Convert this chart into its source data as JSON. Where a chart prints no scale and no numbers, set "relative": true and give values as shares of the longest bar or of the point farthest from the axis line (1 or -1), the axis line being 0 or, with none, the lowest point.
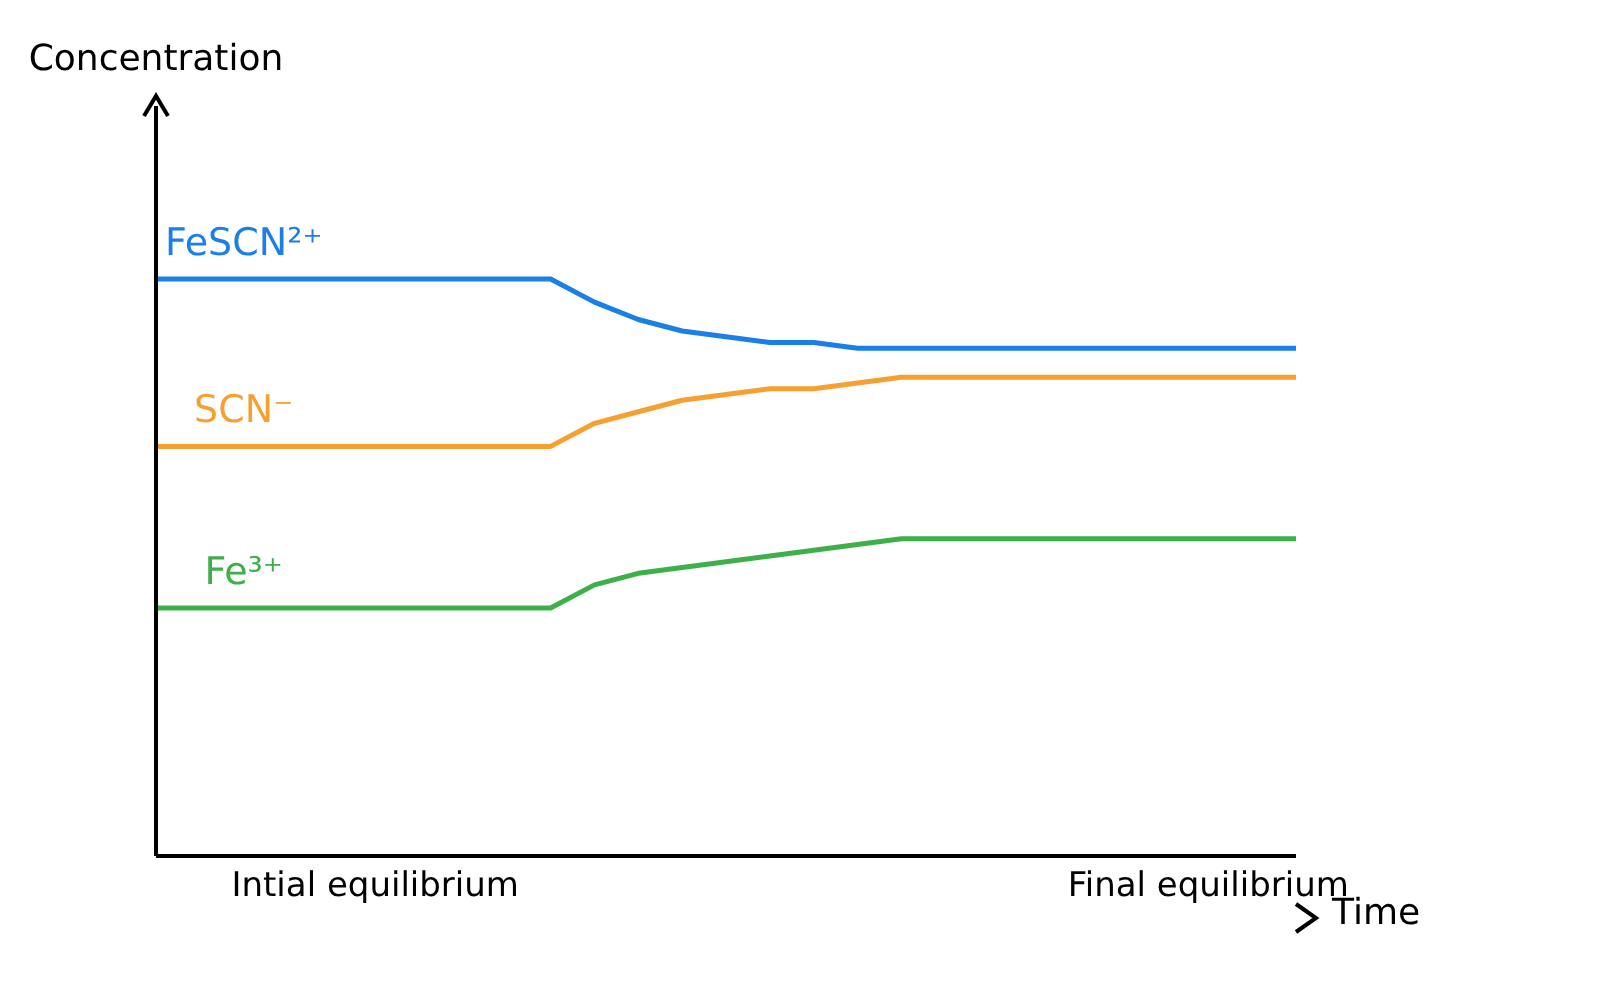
{
  "chart_data": {
    "type": "line",
    "relative": true,
    "xlabel": "Time",
    "annotations": [
      "Concentration"
    ],
    "legend": false,
    "grid": false,
    "marker": "none",
    "categories": [
      null,
      null,
      null,
      null,
      null,
      "Intial equilibrium",
      null,
      null,
      null,
      null,
      null,
      null,
      null,
      null,
      null,
      null,
      null,
      null,
      null,
      null,
      null,
      null,
      null,
      null,
      "Final equilibrium",
      null,
      null
    ],
    "series": [
      {
        "name": "FeSCN²⁺",
        "color": "#1a7fe6",
        "values": [
          1.0,
          1.0,
          1.0,
          1.0,
          1.0,
          1.0,
          1.0,
          1.0,
          1.0,
          1.0,
          0.96,
          0.93,
          0.91,
          0.9,
          0.89,
          0.89,
          0.88,
          0.88,
          0.88,
          0.88,
          0.88,
          0.88,
          0.88,
          0.88,
          0.88,
          0.88,
          0.88
        ]
      },
      {
        "name": "SCN⁻",
        "color": "#f5a030",
        "values": [
          0.71,
          0.71,
          0.71,
          0.71,
          0.71,
          0.71,
          0.71,
          0.71,
          0.71,
          0.71,
          0.75,
          0.77,
          0.79,
          0.8,
          0.81,
          0.81,
          0.82,
          0.83,
          0.83,
          0.83,
          0.83,
          0.83,
          0.83,
          0.83,
          0.83,
          0.83,
          0.83
        ]
      },
      {
        "name": "Fe³⁺",
        "color": "#3db04a",
        "values": [
          0.43,
          0.43,
          0.43,
          0.43,
          0.43,
          0.43,
          0.43,
          0.43,
          0.43,
          0.43,
          0.47,
          0.49,
          0.5,
          0.51,
          0.52,
          0.53,
          0.54,
          0.55,
          0.55,
          0.55,
          0.55,
          0.55,
          0.55,
          0.55,
          0.55,
          0.55,
          0.55
        ]
      }
    ]
  }
}
